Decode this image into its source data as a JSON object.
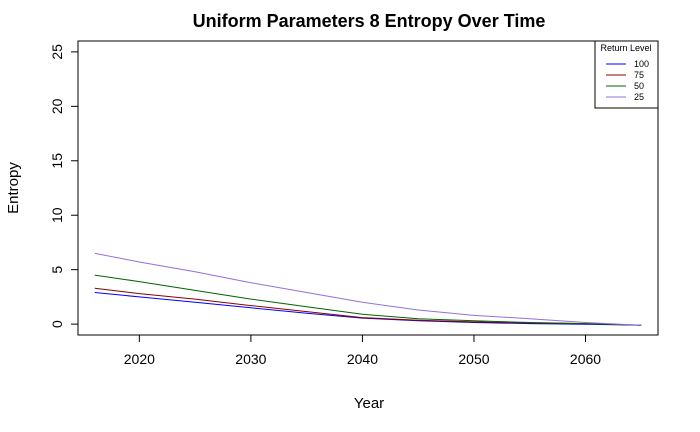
{
  "chart_data": {
    "type": "line",
    "title": "Uniform Parameters 8 Entropy Over Time",
    "xlabel": "Year",
    "ylabel": "Entropy",
    "xlim": [
      2014.5,
      2066.5
    ],
    "ylim": [
      -1,
      26
    ],
    "x_ticks": [
      2020,
      2030,
      2040,
      2050,
      2060
    ],
    "y_ticks": [
      0,
      5,
      10,
      15,
      20,
      25
    ],
    "grid": false,
    "legend": {
      "title": "Return Level",
      "placement": "top-right"
    },
    "series": [
      {
        "name": "100",
        "color": "#0000ff",
        "x": [
          2016,
          2020,
          2025,
          2030,
          2035,
          2040,
          2045,
          2050,
          2055,
          2060,
          2065
        ],
        "y": [
          2.9,
          2.5,
          2.0,
          1.5,
          1.0,
          0.55,
          0.3,
          0.15,
          0.05,
          -0.02,
          -0.1
        ]
      },
      {
        "name": "75",
        "color": "#8b0000",
        "x": [
          2016,
          2020,
          2025,
          2030,
          2035,
          2040,
          2045,
          2050,
          2055,
          2060,
          2065
        ],
        "y": [
          3.3,
          2.8,
          2.3,
          1.7,
          1.15,
          0.6,
          0.35,
          0.2,
          0.1,
          0.05,
          -0.1
        ]
      },
      {
        "name": "50",
        "color": "#006400",
        "x": [
          2016,
          2020,
          2025,
          2030,
          2035,
          2040,
          2045,
          2050,
          2055,
          2060,
          2065
        ],
        "y": [
          4.5,
          3.9,
          3.1,
          2.3,
          1.6,
          0.9,
          0.5,
          0.3,
          0.15,
          0.05,
          -0.1
        ]
      },
      {
        "name": "25",
        "color": "#9370db",
        "x": [
          2016,
          2020,
          2025,
          2030,
          2035,
          2040,
          2045,
          2050,
          2055,
          2060,
          2065
        ],
        "y": [
          6.5,
          5.7,
          4.8,
          3.8,
          2.9,
          2.0,
          1.3,
          0.8,
          0.5,
          0.15,
          -0.1
        ]
      }
    ]
  }
}
